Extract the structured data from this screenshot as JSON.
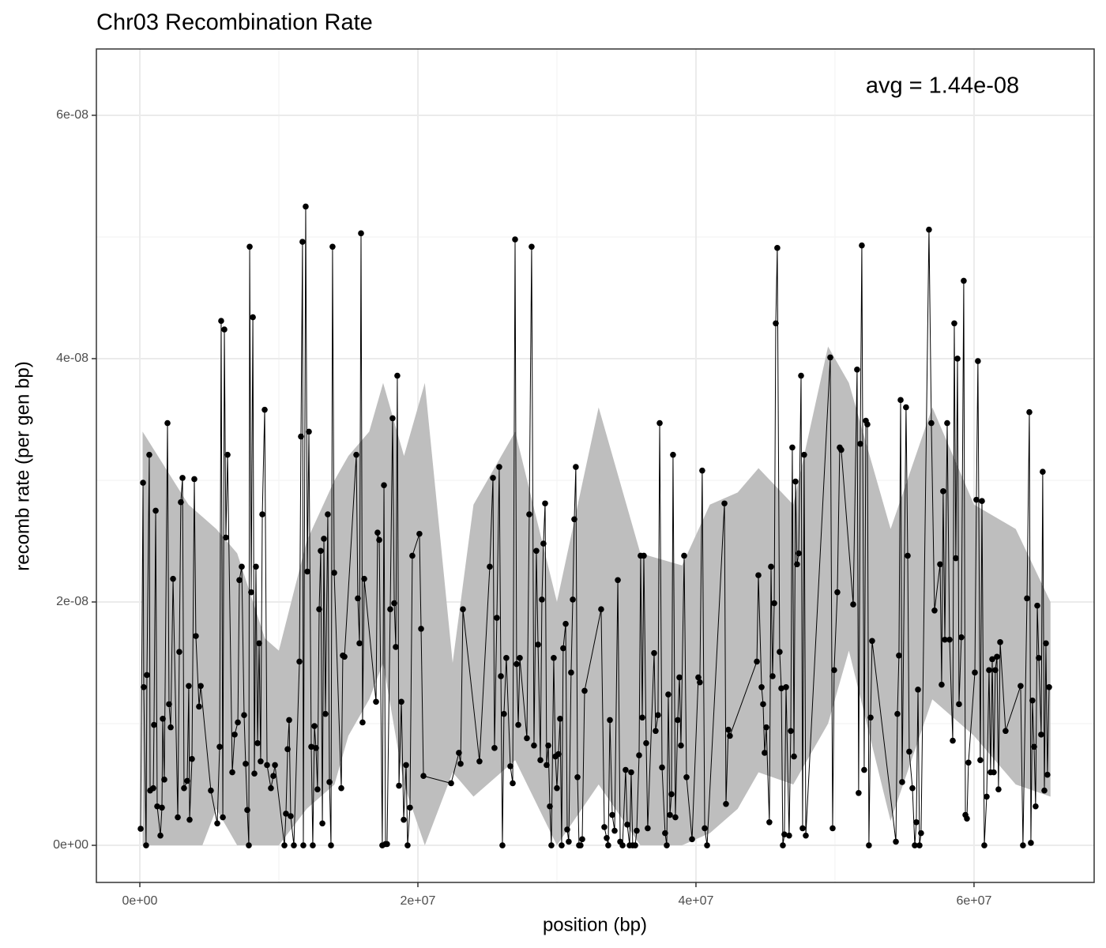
{
  "chart_data": {
    "type": "line-points",
    "title": "Chr03 Recombination Rate",
    "annotation": "avg = 1.44e-08",
    "xlabel": "position (bp)",
    "ylabel": "recomb rate (per gen bp)",
    "xlim": [
      -3125000.0,
      68640000.0
    ],
    "ylim": [
      -3.05e-09,
      6.545e-08
    ],
    "xticks": [
      {
        "value": 0,
        "label": "0e+00"
      },
      {
        "value": 20000000.0,
        "label": "2e+07"
      },
      {
        "value": 40000000.0,
        "label": "4e+07"
      },
      {
        "value": 60000000.0,
        "label": "6e+07"
      }
    ],
    "yticks": [
      {
        "value": 0,
        "label": "0e+00"
      },
      {
        "value": 2e-08,
        "label": "2e-08"
      },
      {
        "value": 4e-08,
        "label": "4e-08"
      },
      {
        "value": 6e-08,
        "label": "6e-08"
      }
    ],
    "x_minor_ticks": [
      10000000.0,
      30000000.0,
      50000000.0
    ],
    "y_minor_ticks": [
      1e-08,
      3e-08,
      5e-08
    ],
    "grid": true,
    "color": "#000000",
    "band_color": "#bebebe",
    "x": [
      60000.0,
      230000.0,
      280000.0,
      450000.0,
      510000.0,
      680000.0,
      740000.0,
      970000.0,
      1020000.0,
      1140000.0,
      1250000.0,
      1480000.0,
      1590000.0,
      1650000.0,
      1760000.0,
      1990000.0,
      2100000.0,
      2220000.0,
      2390000.0,
      2730000.0,
      2840000.0,
      2950000.0,
      3070000.0,
      3180000.0,
      3410000.0,
      3520000.0,
      3580000.0,
      3750000.0,
      3920000.0,
      4030000.0,
      4260000.0,
      4380000.0,
      5110000.0,
      5570000.0,
      5740000.0,
      5850000.0,
      5970000.0,
      6080000.0,
      6190000.0,
      6310000.0,
      6650000.0,
      6820000.0,
      7050000.0,
      7160000.0,
      7330000.0,
      7500000.0,
      7610000.0,
      7730000.0,
      7840000.0,
      7900000.0,
      8010000.0,
      8130000.0,
      8240000.0,
      8350000.0,
      8470000.0,
      8580000.0,
      8690000.0,
      8810000.0,
      8980000.0,
      9150000.0,
      9430000.0,
      9600000.0,
      9720000.0,
      10400000.0,
      10510000.0,
      10630000.0,
      10740000.0,
      10850000.0,
      11080000.0,
      11480000.0,
      11590000.0,
      11700000.0,
      11760000.0,
      11930000.0,
      12050000.0,
      12160000.0,
      12330000.0,
      12440000.0,
      12560000.0,
      12670000.0,
      12780000.0,
      12900000.0,
      13010000.0,
      13130000.0,
      13240000.0,
      13350000.0,
      13520000.0,
      13640000.0,
      13750000.0,
      13860000.0,
      13980000.0,
      14490000.0,
      14600000.0,
      14720000.0,
      15570000.0,
      15680000.0,
      15800000.0,
      15910000.0,
      16020000.0,
      16140000.0,
      16990000.0,
      17100000.0,
      17220000.0,
      17440000.0,
      17560000.0,
      17670000.0,
      17780000.0,
      18010000.0,
      18180000.0,
      18300000.0,
      18410000.0,
      18520000.0,
      18640000.0,
      18810000.0,
      18980000.0,
      19150000.0,
      19260000.0,
      19430000.0,
      19600000.0,
      20110000.0,
      20230000.0,
      20400000.0,
      22390000.0,
      22950000.0,
      23070000.0,
      23240000.0,
      24430000.0,
      25170000.0,
      25400000.0,
      25510000.0,
      25680000.0,
      25850000.0,
      25970000.0,
      26080000.0,
      26190000.0,
      26360000.0,
      26650000.0,
      26820000.0,
      26990000.0,
      27100000.0,
      27220000.0,
      27330000.0,
      27840000.0,
      28010000.0,
      28180000.0,
      28350000.0,
      28520000.0,
      28640000.0,
      28810000.0,
      28920000.0,
      29030000.0,
      29150000.0,
      29260000.0,
      29380000.0,
      29490000.0,
      29600000.0,
      29770000.0,
      29890000.0,
      30000000.0,
      30110000.0,
      30230000.0,
      30340000.0,
      30450000.0,
      30630000.0,
      30740000.0,
      30850000.0,
      31020000.0,
      31140000.0,
      31250000.0,
      31360000.0,
      31480000.0,
      31590000.0,
      31700000.0,
      31820000.0,
      31990000.0,
      33180000.0,
      33410000.0,
      33580000.0,
      33690000.0,
      33810000.0,
      33980000.0,
      34150000.0,
      34380000.0,
      34550000.0,
      34720000.0,
      34940000.0,
      35060000.0,
      35230000.0,
      35340000.0,
      35450000.0,
      35630000.0,
      35740000.0,
      35910000.0,
      36020000.0,
      36140000.0,
      36250000.0,
      36420000.0,
      36530000.0,
      36990000.0,
      37100000.0,
      37270000.0,
      37390000.0,
      37560000.0,
      37780000.0,
      37900000.0,
      38010000.0,
      38130000.0,
      38240000.0,
      38350000.0,
      38520000.0,
      38690000.0,
      38810000.0,
      38920000.0,
      39150000.0,
      39320000.0,
      39720000.0,
      40170000.0,
      40280000.0,
      40450000.0,
      40630000.0,
      40800000.0,
      42050000.0,
      42160000.0,
      42330000.0,
      42440000.0,
      44380000.0,
      44490000.0,
      44720000.0,
      44830000.0,
      44940000.0,
      45060000.0,
      45280000.0,
      45400000.0,
      45510000.0,
      45630000.0,
      45740000.0,
      45850000.0,
      46020000.0,
      46140000.0,
      46250000.0,
      46360000.0,
      46480000.0,
      46700000.0,
      46820000.0,
      46930000.0,
      47050000.0,
      47160000.0,
      47270000.0,
      47390000.0,
      47560000.0,
      47670000.0,
      47780000.0,
      47900000.0,
      49660000.0,
      49830000.0,
      49940000.0,
      50170000.0,
      50340000.0,
      50450000.0,
      51310000.0,
      51590000.0,
      51700000.0,
      51820000.0,
      51930000.0,
      52100000.0,
      52220000.0,
      52330000.0,
      52440000.0,
      52560000.0,
      52670000.0,
      54380000.0,
      54490000.0,
      54600000.0,
      54720000.0,
      54830000.0,
      55110000.0,
      55230000.0,
      55340000.0,
      55570000.0,
      55740000.0,
      55850000.0,
      55970000.0,
      56080000.0,
      56190000.0,
      56760000.0,
      56930000.0,
      57160000.0,
      57560000.0,
      57670000.0,
      57780000.0,
      57900000.0,
      58070000.0,
      58240000.0,
      58470000.0,
      58580000.0,
      58690000.0,
      58810000.0,
      58920000.0,
      59090000.0,
      59260000.0,
      59380000.0,
      59490000.0,
      59600000.0,
      60060000.0,
      60170000.0,
      60280000.0,
      60450000.0,
      60570000.0,
      60740000.0,
      60910000.0,
      61080000.0,
      61190000.0,
      61310000.0,
      61420000.0,
      61530000.0,
      61650000.0,
      61760000.0,
      61880000.0,
      62270000.0,
      63350000.0,
      63520000.0,
      63810000.0,
      63980000.0,
      64090000.0,
      64200000.0,
      64320000.0,
      64430000.0,
      64550000.0,
      64660000.0,
      64830000.0,
      64940000.0,
      65060000.0,
      65170000.0,
      65280000.0,
      65400000.0
    ],
    "values": [
      1.36e-09,
      2.98e-08,
      1.3e-08,
      0,
      1.4e-08,
      3.21e-08,
      4.5e-09,
      4.7e-09,
      9.9e-09,
      2.75e-08,
      3.2e-09,
      8e-10,
      3.1e-09,
      1.04e-08,
      5.4e-09,
      3.47e-08,
      1.16e-08,
      9.7e-09,
      2.19e-08,
      2.3e-09,
      1.59e-08,
      2.82e-08,
      3.02e-08,
      4.7e-09,
      5.3e-09,
      1.31e-08,
      2.1e-09,
      7.1e-09,
      3.01e-08,
      1.72e-08,
      1.14e-08,
      1.31e-08,
      4.5e-09,
      1.8e-09,
      8.1e-09,
      4.31e-08,
      2.3e-09,
      4.24e-08,
      2.53e-08,
      3.21e-08,
      6e-09,
      9.1e-09,
      1.01e-08,
      2.18e-08,
      2.29e-08,
      1.07e-08,
      6.7e-09,
      2.9e-09,
      0,
      4.92e-08,
      2.08e-08,
      4.34e-08,
      5.9e-09,
      2.29e-08,
      8.4e-09,
      1.66e-08,
      6.9e-09,
      2.72e-08,
      3.58e-08,
      6.6e-09,
      4.7e-09,
      5.7e-09,
      6.6e-09,
      0,
      2.6e-09,
      7.9e-09,
      1.03e-08,
      2.4e-09,
      0,
      1.51e-08,
      3.36e-08,
      4.96e-08,
      0,
      5.25e-08,
      2.25e-08,
      3.4e-08,
      8.1e-09,
      0,
      9.8e-09,
      8e-09,
      4.6e-09,
      1.94e-08,
      2.42e-08,
      1.8e-09,
      2.52e-08,
      1.08e-08,
      2.72e-08,
      5.2e-09,
      0,
      4.92e-08,
      2.24e-08,
      4.7e-09,
      1.56e-08,
      1.55e-08,
      3.21e-08,
      2.03e-08,
      1.66e-08,
      5.03e-08,
      1.01e-08,
      2.19e-08,
      1.18e-08,
      2.57e-08,
      2.51e-08,
      0,
      2.96e-08,
      1e-10,
      1e-10,
      1.94e-08,
      3.51e-08,
      1.99e-08,
      1.63e-08,
      3.86e-08,
      4.9e-09,
      1.18e-08,
      2.1e-09,
      6.6e-09,
      0,
      3.1e-09,
      2.38e-08,
      2.56e-08,
      1.78e-08,
      5.7e-09,
      5.1e-09,
      7.6e-09,
      6.7e-09,
      1.94e-08,
      6.9e-09,
      2.29e-08,
      3.02e-08,
      8e-09,
      1.87e-08,
      3.11e-08,
      1.39e-08,
      0,
      1.08e-08,
      1.54e-08,
      6.5e-09,
      5.1e-09,
      4.98e-08,
      1.49e-08,
      9.9e-09,
      1.54e-08,
      8.8e-09,
      2.72e-08,
      4.92e-08,
      8.2e-09,
      2.42e-08,
      1.65e-08,
      7e-09,
      2.02e-08,
      2.48e-08,
      2.81e-08,
      6.6e-09,
      8.2e-09,
      3.2e-09,
      0,
      1.54e-08,
      7.3e-09,
      4.7e-09,
      7.5e-09,
      1.04e-08,
      0,
      1.62e-08,
      1.82e-08,
      1.3e-09,
      3e-10,
      1.42e-08,
      2.02e-08,
      2.68e-08,
      3.11e-08,
      5.6e-09,
      0,
      0,
      5e-10,
      1.27e-08,
      1.94e-08,
      1.5e-09,
      6e-10,
      0,
      1.03e-08,
      2.5e-09,
      1.2e-09,
      2.18e-08,
      3e-10,
      0,
      6.2e-09,
      1.7e-09,
      0,
      6e-09,
      0,
      0,
      1.2e-09,
      7.4e-09,
      2.38e-08,
      1.05e-08,
      2.38e-08,
      8.4e-09,
      1.4e-09,
      1.58e-08,
      9.4e-09,
      1.07e-08,
      3.47e-08,
      6.4e-09,
      1e-09,
      0,
      1.24e-08,
      2.5e-09,
      4.2e-09,
      3.21e-08,
      2.3e-09,
      1.03e-08,
      1.38e-08,
      8.2e-09,
      2.38e-08,
      5.6e-09,
      5e-10,
      1.38e-08,
      1.34e-08,
      3.08e-08,
      1.4e-09,
      0,
      2.81e-08,
      3.4e-09,
      9.5e-09,
      9e-09,
      1.51e-08,
      2.22e-08,
      1.3e-08,
      1.16e-08,
      7.6e-09,
      9.7e-09,
      1.9e-09,
      2.29e-08,
      1.39e-08,
      1.99e-08,
      4.29e-08,
      4.91e-08,
      1.59e-08,
      1.29e-08,
      0,
      9e-10,
      1.3e-08,
      8e-10,
      9.4e-09,
      3.27e-08,
      7.3e-09,
      2.99e-08,
      2.31e-08,
      2.4e-08,
      3.86e-08,
      1.4e-09,
      3.21e-08,
      8e-10,
      4.01e-08,
      1.4e-09,
      1.44e-08,
      2.08e-08,
      3.27e-08,
      3.25e-08,
      1.98e-08,
      3.91e-08,
      4.3e-09,
      3.3e-08,
      4.93e-08,
      6.2e-09,
      3.49e-08,
      3.46e-08,
      0,
      1.05e-08,
      1.68e-08,
      3e-10,
      1.08e-08,
      1.56e-08,
      3.66e-08,
      5.2e-09,
      3.6e-08,
      2.38e-08,
      7.7e-09,
      4.7e-09,
      0,
      1.9e-09,
      1.28e-08,
      0,
      1e-09,
      5.06e-08,
      3.47e-08,
      1.93e-08,
      2.31e-08,
      1.32e-08,
      2.91e-08,
      1.69e-08,
      3.47e-08,
      1.69e-08,
      8.6e-09,
      4.29e-08,
      2.36e-08,
      4e-08,
      1.16e-08,
      1.71e-08,
      4.64e-08,
      2.5e-09,
      2.2e-09,
      6.8e-09,
      1.42e-08,
      2.84e-08,
      3.98e-08,
      7e-09,
      2.83e-08,
      0,
      4e-09,
      1.44e-08,
      6e-09,
      1.53e-08,
      6e-09,
      1.44e-08,
      1.55e-08,
      4.6e-09,
      1.67e-08,
      9.4e-09,
      1.31e-08,
      0,
      2.03e-08,
      3.56e-08,
      2e-10,
      1.19e-08,
      8.1e-09,
      3.2e-09,
      1.97e-08,
      1.54e-08,
      9.1e-09,
      3.07e-08,
      4.5e-09,
      1.66e-08,
      5.8e-09,
      1.3e-08
    ],
    "band": {
      "x": [
        200000.0,
        3500000.0,
        4500000.0,
        5500000.0,
        7000000.0,
        9000000.0,
        10000000.0,
        12000000.0,
        14000000.0,
        15000000.0,
        16500000.0,
        17500000.0,
        19000000.0,
        20500000.0,
        22500000.0,
        24000000.0,
        27000000.0,
        30000000.0,
        33000000.0,
        36000000.0,
        39000000.0,
        41000000.0,
        43000000.0,
        44500000.0,
        47000000.0,
        49500000.0,
        51000000.0,
        54000000.0,
        57000000.0,
        60000000.0,
        63000000.0,
        65500000.0
      ],
      "lower": [
        0,
        0,
        0,
        3e-09,
        0,
        0,
        0,
        3e-09,
        5e-09,
        9e-09,
        1.2e-08,
        1.5e-08,
        5e-09,
        0,
        6e-09,
        4e-09,
        7e-09,
        0,
        5e-09,
        0,
        0,
        1e-09,
        3e-09,
        6e-09,
        5e-09,
        1e-08,
        1.6e-08,
        2e-09,
        1.2e-08,
        9e-09,
        5e-09,
        4e-09
      ],
      "upper": [
        3.4e-08,
        2.8e-08,
        2.7e-08,
        2.6e-08,
        2.4e-08,
        1.7e-08,
        1.6e-08,
        2.5e-08,
        3e-08,
        3.2e-08,
        3.4e-08,
        3.8e-08,
        3.2e-08,
        3.8e-08,
        1.5e-08,
        2.8e-08,
        3.4e-08,
        2e-08,
        3.6e-08,
        2.4e-08,
        2.3e-08,
        2.8e-08,
        2.9e-08,
        3.1e-08,
        2.8e-08,
        4.1e-08,
        3.8e-08,
        2.6e-08,
        3.6e-08,
        2.8e-08,
        2.6e-08,
        2e-08
      ]
    }
  }
}
